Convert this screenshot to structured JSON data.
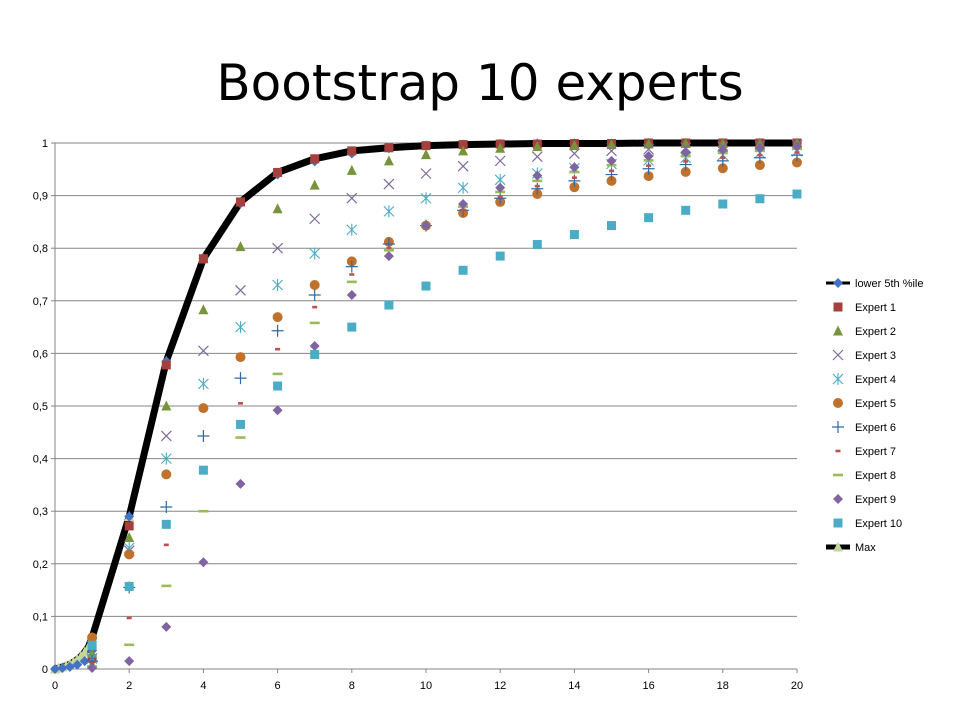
{
  "chart_data": {
    "type": "scatter",
    "title": "Bootstrap 10 experts",
    "xlabel": "",
    "ylabel": "",
    "xlim": [
      0,
      20
    ],
    "ylim": [
      0,
      1
    ],
    "x_ticks": [
      "0",
      "2",
      "4",
      "6",
      "8",
      "10",
      "12",
      "14",
      "16",
      "18",
      "20"
    ],
    "y_ticks": [
      "0",
      "0,1",
      "0,2",
      "0,3",
      "0,4",
      "0,5",
      "0,6",
      "0,7",
      "0,8",
      "0,9",
      "1"
    ],
    "grid": "horizontal",
    "legend_position": "right",
    "x": [
      1,
      2,
      3,
      4,
      5,
      6,
      7,
      8,
      9,
      10,
      11,
      12,
      13,
      14,
      15,
      16,
      17,
      18,
      19,
      20
    ],
    "series": [
      {
        "name": "lower 5th %ile",
        "marker": "diamond",
        "color": "#4472C4",
        "points": [
          [
            0,
            0
          ],
          [
            0.2,
            0.002
          ],
          [
            0.4,
            0.004
          ],
          [
            0.6,
            0.008
          ],
          [
            0.8,
            0.015
          ],
          [
            1,
            0.035
          ],
          [
            2,
            0.29
          ],
          [
            3,
            0.585
          ],
          [
            4,
            0.78
          ],
          [
            5,
            0.885
          ],
          [
            6,
            0.94
          ],
          [
            7,
            0.965
          ],
          [
            8,
            0.98
          ],
          [
            9,
            0.99
          ],
          [
            10,
            0.995
          ],
          [
            11,
            0.997
          ],
          [
            12,
            0.998
          ],
          [
            13,
            0.999
          ],
          [
            14,
            0.999
          ],
          [
            15,
            0.999
          ],
          [
            16,
            1
          ],
          [
            17,
            1
          ],
          [
            18,
            1
          ],
          [
            19,
            1
          ],
          [
            20,
            1
          ]
        ]
      },
      {
        "name": "Expert 1",
        "marker": "square",
        "color": "#A5403D",
        "points": [
          [
            1,
            0.02
          ],
          [
            2,
            0.272
          ],
          [
            3,
            0.578
          ],
          [
            4,
            0.78
          ],
          [
            5,
            0.888
          ],
          [
            6,
            0.944
          ],
          [
            7,
            0.97
          ],
          [
            8,
            0.985
          ],
          [
            9,
            0.991
          ],
          [
            10,
            0.995
          ],
          [
            11,
            0.997
          ],
          [
            12,
            0.998
          ],
          [
            13,
            0.998
          ],
          [
            14,
            0.999
          ],
          [
            15,
            0.999
          ],
          [
            16,
            1
          ],
          [
            17,
            1
          ],
          [
            18,
            1
          ],
          [
            19,
            1
          ],
          [
            20,
            1
          ]
        ]
      },
      {
        "name": "Expert 2",
        "marker": "triangle",
        "color": "#77933C",
        "points": [
          [
            1,
            0.03
          ],
          [
            2,
            0.25
          ],
          [
            3,
            0.5
          ],
          [
            4,
            0.683
          ],
          [
            5,
            0.803
          ],
          [
            6,
            0.875
          ],
          [
            7,
            0.92
          ],
          [
            8,
            0.948
          ],
          [
            9,
            0.966
          ],
          [
            10,
            0.978
          ],
          [
            11,
            0.985
          ],
          [
            12,
            0.99
          ],
          [
            13,
            0.993
          ],
          [
            14,
            0.995
          ],
          [
            15,
            0.997
          ],
          [
            16,
            0.998
          ],
          [
            17,
            0.999
          ],
          [
            18,
            0.999
          ],
          [
            19,
            0.999
          ],
          [
            20,
            1
          ]
        ]
      },
      {
        "name": "Expert 3",
        "marker": "x",
        "color": "#7E6A9B",
        "points": [
          [
            1,
            0.02
          ],
          [
            2,
            0.225
          ],
          [
            3,
            0.443
          ],
          [
            4,
            0.605
          ],
          [
            5,
            0.72
          ],
          [
            6,
            0.8
          ],
          [
            7,
            0.856
          ],
          [
            8,
            0.895
          ],
          [
            9,
            0.922
          ],
          [
            10,
            0.942
          ],
          [
            11,
            0.956
          ],
          [
            12,
            0.966
          ],
          [
            13,
            0.974
          ],
          [
            14,
            0.98
          ],
          [
            15,
            0.985
          ],
          [
            16,
            0.988
          ],
          [
            17,
            0.991
          ],
          [
            18,
            0.993
          ],
          [
            19,
            0.995
          ],
          [
            20,
            0.996
          ]
        ]
      },
      {
        "name": "Expert 4",
        "marker": "star",
        "color": "#4BACC6",
        "points": [
          [
            1,
            0.02
          ],
          [
            2,
            0.23
          ],
          [
            3,
            0.4
          ],
          [
            4,
            0.542
          ],
          [
            5,
            0.65
          ],
          [
            6,
            0.73
          ],
          [
            7,
            0.79
          ],
          [
            8,
            0.835
          ],
          [
            9,
            0.87
          ],
          [
            10,
            0.895
          ],
          [
            11,
            0.915
          ],
          [
            12,
            0.93
          ],
          [
            13,
            0.942
          ],
          [
            14,
            0.952
          ],
          [
            15,
            0.96
          ],
          [
            16,
            0.967
          ],
          [
            17,
            0.972
          ],
          [
            18,
            0.977
          ],
          [
            19,
            0.981
          ],
          [
            20,
            0.984
          ]
        ]
      },
      {
        "name": "Expert 5",
        "marker": "circle",
        "color": "#C0712C",
        "points": [
          [
            1,
            0.06
          ],
          [
            2,
            0.218
          ],
          [
            3,
            0.37
          ],
          [
            4,
            0.496
          ],
          [
            5,
            0.593
          ],
          [
            6,
            0.669
          ],
          [
            7,
            0.73
          ],
          [
            8,
            0.775
          ],
          [
            9,
            0.812
          ],
          [
            10,
            0.843
          ],
          [
            11,
            0.867
          ],
          [
            12,
            0.888
          ],
          [
            13,
            0.903
          ],
          [
            14,
            0.916
          ],
          [
            15,
            0.928
          ],
          [
            16,
            0.937
          ],
          [
            17,
            0.945
          ],
          [
            18,
            0.952
          ],
          [
            19,
            0.958
          ],
          [
            20,
            0.963
          ]
        ]
      },
      {
        "name": "Expert 6",
        "marker": "plus",
        "color": "#2E6BA6",
        "points": [
          [
            1,
            0.015
          ],
          [
            2,
            0.155
          ],
          [
            3,
            0.308
          ],
          [
            4,
            0.443
          ],
          [
            5,
            0.553
          ],
          [
            6,
            0.643
          ],
          [
            7,
            0.711
          ],
          [
            8,
            0.765
          ],
          [
            9,
            0.808
          ],
          [
            10,
            0.843
          ],
          [
            11,
            0.872
          ],
          [
            12,
            0.895
          ],
          [
            13,
            0.913
          ],
          [
            14,
            0.928
          ],
          [
            15,
            0.94
          ],
          [
            16,
            0.951
          ],
          [
            17,
            0.959
          ],
          [
            18,
            0.966
          ],
          [
            19,
            0.972
          ],
          [
            20,
            0.977
          ]
        ]
      },
      {
        "name": "Expert 7",
        "marker": "dash",
        "color": "#C0504D",
        "points": [
          [
            1,
            0.01
          ],
          [
            2,
            0.097
          ],
          [
            3,
            0.236
          ],
          [
            4,
            0.38
          ],
          [
            5,
            0.505
          ],
          [
            6,
            0.608
          ],
          [
            7,
            0.688
          ],
          [
            8,
            0.75
          ],
          [
            9,
            0.8
          ],
          [
            10,
            0.84
          ],
          [
            11,
            0.872
          ],
          [
            12,
            0.898
          ],
          [
            13,
            0.918
          ],
          [
            14,
            0.934
          ],
          [
            15,
            0.947
          ],
          [
            16,
            0.957
          ],
          [
            17,
            0.965
          ],
          [
            18,
            0.972
          ],
          [
            19,
            0.977
          ],
          [
            20,
            0.982
          ]
        ]
      },
      {
        "name": "Expert 8",
        "marker": "longdash",
        "color": "#9BBB59",
        "points": [
          [
            1,
            0.005
          ],
          [
            2,
            0.046
          ],
          [
            3,
            0.158
          ],
          [
            4,
            0.3
          ],
          [
            5,
            0.44
          ],
          [
            6,
            0.561
          ],
          [
            7,
            0.658
          ],
          [
            8,
            0.736
          ],
          [
            9,
            0.796
          ],
          [
            10,
            0.843
          ],
          [
            11,
            0.879
          ],
          [
            12,
            0.907
          ],
          [
            13,
            0.928
          ],
          [
            14,
            0.945
          ],
          [
            15,
            0.958
          ],
          [
            16,
            0.967
          ],
          [
            17,
            0.975
          ],
          [
            18,
            0.981
          ],
          [
            19,
            0.985
          ],
          [
            20,
            0.989
          ]
        ]
      },
      {
        "name": "Expert 9",
        "marker": "diamond",
        "color": "#8064A2",
        "points": [
          [
            1,
            0.002
          ],
          [
            2,
            0.015
          ],
          [
            3,
            0.08
          ],
          [
            4,
            0.203
          ],
          [
            5,
            0.352
          ],
          [
            6,
            0.492
          ],
          [
            7,
            0.614
          ],
          [
            8,
            0.711
          ],
          [
            9,
            0.785
          ],
          [
            10,
            0.843
          ],
          [
            11,
            0.884
          ],
          [
            12,
            0.915
          ],
          [
            13,
            0.938
          ],
          [
            14,
            0.954
          ],
          [
            15,
            0.966
          ],
          [
            16,
            0.975
          ],
          [
            17,
            0.982
          ],
          [
            18,
            0.987
          ],
          [
            19,
            0.99
          ],
          [
            20,
            0.993
          ]
        ]
      },
      {
        "name": "Expert 10",
        "marker": "square",
        "color": "#4BACC6",
        "points": [
          [
            1,
            0.045
          ],
          [
            2,
            0.157
          ],
          [
            3,
            0.275
          ],
          [
            4,
            0.378
          ],
          [
            5,
            0.465
          ],
          [
            6,
            0.538
          ],
          [
            7,
            0.598
          ],
          [
            8,
            0.65
          ],
          [
            9,
            0.692
          ],
          [
            10,
            0.728
          ],
          [
            11,
            0.758
          ],
          [
            12,
            0.785
          ],
          [
            13,
            0.807
          ],
          [
            14,
            0.826
          ],
          [
            15,
            0.843
          ],
          [
            16,
            0.858
          ],
          [
            17,
            0.872
          ],
          [
            18,
            0.884
          ],
          [
            19,
            0.894
          ],
          [
            20,
            0.903
          ]
        ]
      },
      {
        "name": "Max",
        "marker": "triangle",
        "line": true,
        "color": "#000000",
        "marker_color": "#C4D79B",
        "points": [
          [
            0,
            0
          ],
          [
            0.1,
            0.002
          ],
          [
            0.2,
            0.004
          ],
          [
            0.3,
            0.006
          ],
          [
            0.4,
            0.009
          ],
          [
            0.5,
            0.013
          ],
          [
            0.6,
            0.018
          ],
          [
            0.7,
            0.024
          ],
          [
            0.8,
            0.032
          ],
          [
            0.9,
            0.042
          ],
          [
            1,
            0.06
          ],
          [
            2,
            0.29
          ],
          [
            3,
            0.585
          ],
          [
            4,
            0.78
          ],
          [
            5,
            0.888
          ],
          [
            6,
            0.944
          ],
          [
            7,
            0.97
          ],
          [
            8,
            0.985
          ],
          [
            9,
            0.991
          ],
          [
            10,
            0.995
          ],
          [
            11,
            0.997
          ],
          [
            12,
            0.998
          ],
          [
            13,
            0.999
          ],
          [
            14,
            0.999
          ],
          [
            15,
            0.999
          ],
          [
            16,
            1
          ],
          [
            17,
            1
          ],
          [
            18,
            1
          ],
          [
            19,
            1
          ],
          [
            20,
            1
          ]
        ]
      }
    ]
  }
}
